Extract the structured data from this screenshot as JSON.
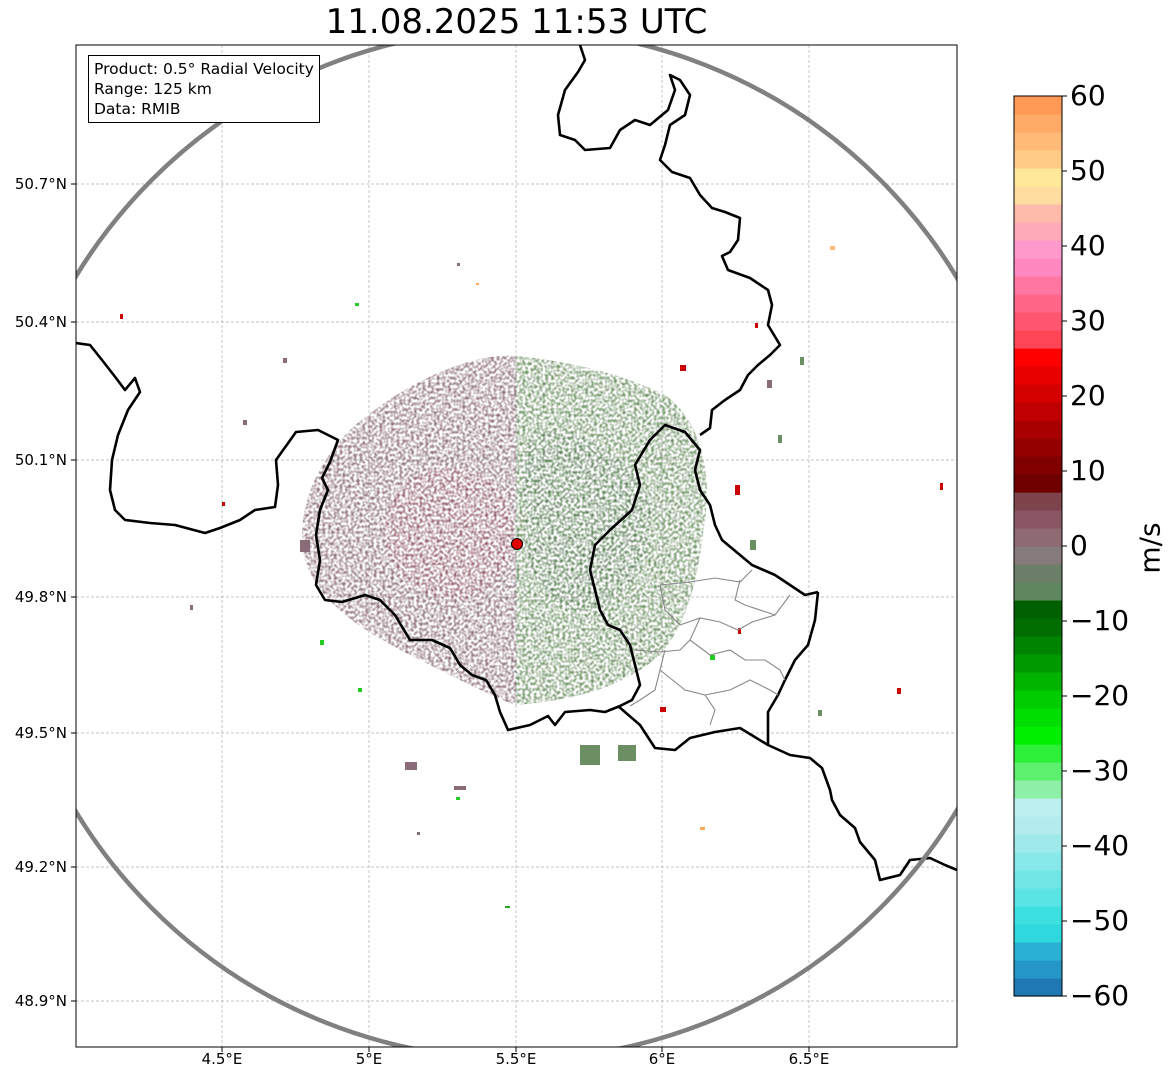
{
  "title": "11.08.2025 11:53 UTC",
  "info": {
    "product": "Product: 0.5° Radial Velocity",
    "range": "Range: 125 km",
    "source": "Data: RMIB"
  },
  "map": {
    "lat_ticks": [
      "50.7°N",
      "50.4°N",
      "50.1°N",
      "49.8°N",
      "49.5°N",
      "49.2°N",
      "48.9°N"
    ],
    "lon_ticks": [
      "4.5°E",
      "5°E",
      "5.5°E",
      "6°E",
      "6.5°E"
    ],
    "radar_site": {
      "lon": 5.5,
      "lat": 49.915
    },
    "range_km": 125
  },
  "colorbar": {
    "unit": "m/s",
    "ticks": [
      "60",
      "50",
      "40",
      "30",
      "20",
      "10",
      "0",
      "−10",
      "−20",
      "−30",
      "−40",
      "−50",
      "−60"
    ],
    "min": -60,
    "max": 60,
    "colors": [
      "#1f77b4",
      "#2596c8",
      "#29b0d3",
      "#2fd8dc",
      "#3de0e0",
      "#5ae4e4",
      "#70e6e6",
      "#86e8e8",
      "#9eeaea",
      "#b2ecec",
      "#bcefef",
      "#8ef0a8",
      "#5cf06e",
      "#2ef03a",
      "#00ee00",
      "#00dd00",
      "#00cc00",
      "#00b400",
      "#009a00",
      "#008400",
      "#006e00",
      "#006000",
      "#5e8760",
      "#6a7e68",
      "#867a7c",
      "#8e6b72",
      "#8a5664",
      "#7e444c",
      "#6e0000",
      "#800000",
      "#940000",
      "#a80000",
      "#c00000",
      "#d40000",
      "#e80000",
      "#ff0000",
      "#ff4455",
      "#ff5570",
      "#ff6688",
      "#ff77a0",
      "#ff88c0",
      "#ff99cc",
      "#ffaab8",
      "#ffbbaa",
      "#ffdda0",
      "#ffe898",
      "#ffcc88",
      "#ffbb77",
      "#ffaa66",
      "#ff9955"
    ]
  },
  "style": {
    "approach_color": "#6b8f62",
    "recede_color": "#8a6c78",
    "border_color": "#000000",
    "range_ring_color": "#808080",
    "site_marker_color": "#e00000"
  }
}
